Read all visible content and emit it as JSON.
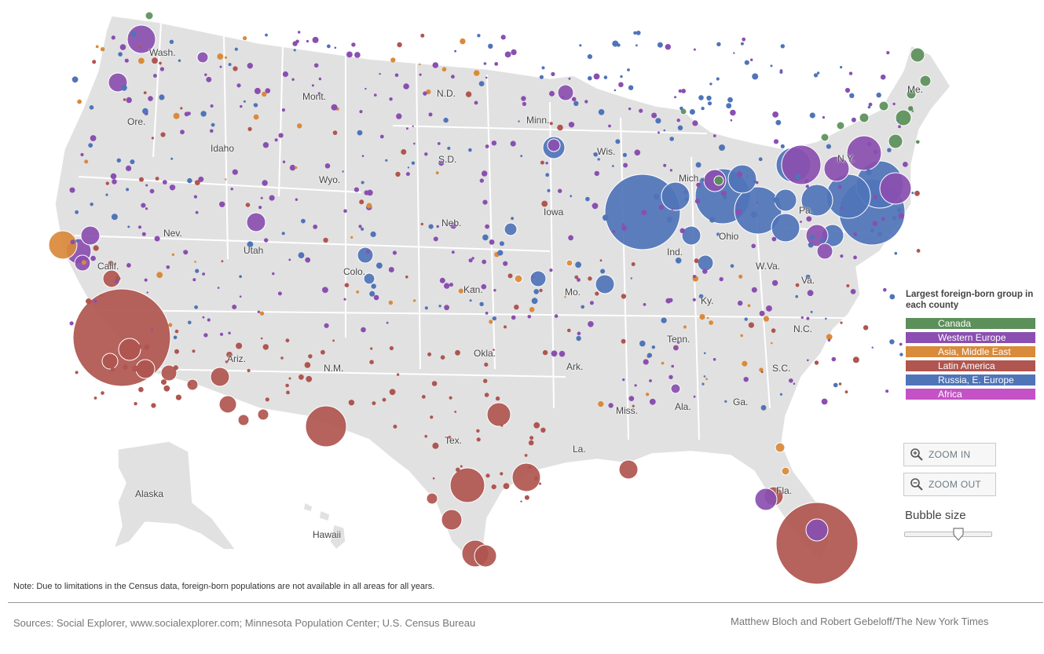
{
  "map": {
    "state_labels": [
      {
        "id": "wash",
        "text": "Wash."
      },
      {
        "id": "ore",
        "text": "Ore."
      },
      {
        "id": "mont",
        "text": "Mont."
      },
      {
        "id": "idaho",
        "text": "Idaho"
      },
      {
        "id": "wyo",
        "text": "Wyo."
      },
      {
        "id": "nev",
        "text": "Nev."
      },
      {
        "id": "utah",
        "text": "Utah"
      },
      {
        "id": "calif",
        "text": "Calif."
      },
      {
        "id": "colo",
        "text": "Colo."
      },
      {
        "id": "ariz",
        "text": "Ariz."
      },
      {
        "id": "nm",
        "text": "N.M."
      },
      {
        "id": "nd",
        "text": "N.D."
      },
      {
        "id": "sd",
        "text": "S.D."
      },
      {
        "id": "neb",
        "text": "Neb."
      },
      {
        "id": "kan",
        "text": "Kan."
      },
      {
        "id": "okla",
        "text": "Okla."
      },
      {
        "id": "tex",
        "text": "Tex."
      },
      {
        "id": "minn",
        "text": "Minn."
      },
      {
        "id": "iowa",
        "text": "Iowa"
      },
      {
        "id": "mo",
        "text": "Mo."
      },
      {
        "id": "ark",
        "text": "Ark."
      },
      {
        "id": "la",
        "text": "La."
      },
      {
        "id": "wis",
        "text": "Wis."
      },
      {
        "id": "mich",
        "text": "Mich."
      },
      {
        "id": "ind",
        "text": "Ind."
      },
      {
        "id": "ohio",
        "text": "Ohio"
      },
      {
        "id": "ky",
        "text": "Ky."
      },
      {
        "id": "tenn",
        "text": "Tenn."
      },
      {
        "id": "miss",
        "text": "Miss."
      },
      {
        "id": "ala",
        "text": "Ala."
      },
      {
        "id": "ga",
        "text": "Ga."
      },
      {
        "id": "fla",
        "text": "Fla."
      },
      {
        "id": "sc",
        "text": "S.C."
      },
      {
        "id": "nc",
        "text": "N.C."
      },
      {
        "id": "va",
        "text": "Va."
      },
      {
        "id": "wva",
        "text": "W.Va."
      },
      {
        "id": "pa",
        "text": "Pa."
      },
      {
        "id": "ny",
        "text": "N.Y."
      },
      {
        "id": "me",
        "text": "Me."
      },
      {
        "id": "alaska",
        "text": "Alaska"
      },
      {
        "id": "hawaii",
        "text": "Hawaii"
      }
    ]
  },
  "legend": {
    "title": "Largest foreign-born group in each county",
    "items": [
      {
        "label": "Canada",
        "color": "#5c8f5a"
      },
      {
        "label": "Western Europe",
        "color": "#8a4fb0"
      },
      {
        "label": "Asia, Middle East",
        "color": "#d98a3a"
      },
      {
        "label": "Latin America",
        "color": "#b0554f"
      },
      {
        "label": "Russia, E. Europe",
        "color": "#4f74b8"
      },
      {
        "label": "Africa",
        "color": "#c452c6"
      }
    ]
  },
  "controls": {
    "zoom_in": "ZOOM IN",
    "zoom_out": "ZOOM OUT",
    "bubble_size": "Bubble size",
    "bubble_size_level": 0.62
  },
  "footer": {
    "note": "Note: Due to limitations in the Census data, foreign-born populations are not available in all areas for all years.",
    "sources": "Sources: Social Explorer, www.socialexplorer.com; Minnesota Population Center; U.S. Census Bureau",
    "credit": "Matthew Bloch and Robert Gebeloff/The New York Times"
  }
}
